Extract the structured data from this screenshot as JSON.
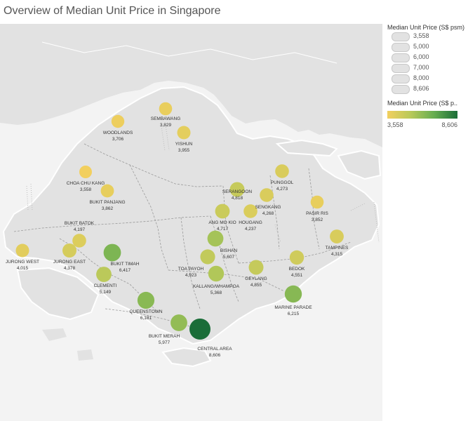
{
  "title": "Overview of Median Unit Price in Singapore",
  "legend": {
    "size_title": "Median Unit Price (S$ psm)",
    "size_values": [
      "3,558",
      "5,000",
      "6,000",
      "7,000",
      "8,000",
      "8,606"
    ],
    "color_title": "Median Unit Price (S$ p..",
    "color_min": "3,558",
    "color_max": "8,606",
    "colors": {
      "low": "#f2cf5e",
      "mid": "#9cc257",
      "high": "#1a6d38"
    }
  },
  "areas": [
    {
      "name": "SEMBAWANG",
      "value": "3,829",
      "price": 3829
    },
    {
      "name": "WOODLANDS",
      "value": "3,706",
      "price": 3706
    },
    {
      "name": "YISHUN",
      "value": "3,955",
      "price": 3955
    },
    {
      "name": "CHOA CHU KANG",
      "value": "3,558",
      "price": 3558
    },
    {
      "name": "BUKIT PANJANG",
      "value": "3,862",
      "price": 3862
    },
    {
      "name": "PUNGGOL",
      "value": "4,273",
      "price": 4273
    },
    {
      "name": "SERANGOON",
      "value": "4,818",
      "price": 4818
    },
    {
      "name": "SENGKANG",
      "value": "4,268",
      "price": 4268
    },
    {
      "name": "PASIR RIS",
      "value": "3,852",
      "price": 3852
    },
    {
      "name": "ANG MO KIO",
      "value": "4,717",
      "price": 4717
    },
    {
      "name": "HOUGANG",
      "value": "4,237",
      "price": 4237
    },
    {
      "name": "BUKIT BATOK",
      "value": "4,197",
      "price": 4197
    },
    {
      "name": "JURONG WEST",
      "value": "4,015",
      "price": 4015
    },
    {
      "name": "JURONG EAST",
      "value": "4,378",
      "price": 4378
    },
    {
      "name": "BUKIT TIMAH",
      "value": "6,417",
      "price": 6417
    },
    {
      "name": "BISHAN",
      "value": "5,607",
      "price": 5607
    },
    {
      "name": "TAMPINES",
      "value": "4,315",
      "price": 4315
    },
    {
      "name": "TOA PAYOH",
      "value": "4,923",
      "price": 4923
    },
    {
      "name": "CLEMENTI",
      "value": "5,149",
      "price": 5149
    },
    {
      "name": "KALLANG/WHAMPOA",
      "value": "5,368",
      "price": 5368
    },
    {
      "name": "GEYLANG",
      "value": "4,855",
      "price": 4855
    },
    {
      "name": "BEDOK",
      "value": "4,551",
      "price": 4551
    },
    {
      "name": "QUEENSTOWN",
      "value": "6,181",
      "price": 6181
    },
    {
      "name": "MARINE PARADE",
      "value": "6,215",
      "price": 6215
    },
    {
      "name": "BUKIT MERAH",
      "value": "5,977",
      "price": 5977
    },
    {
      "name": "CENTRAL AREA",
      "value": "8,606",
      "price": 8606
    }
  ]
}
